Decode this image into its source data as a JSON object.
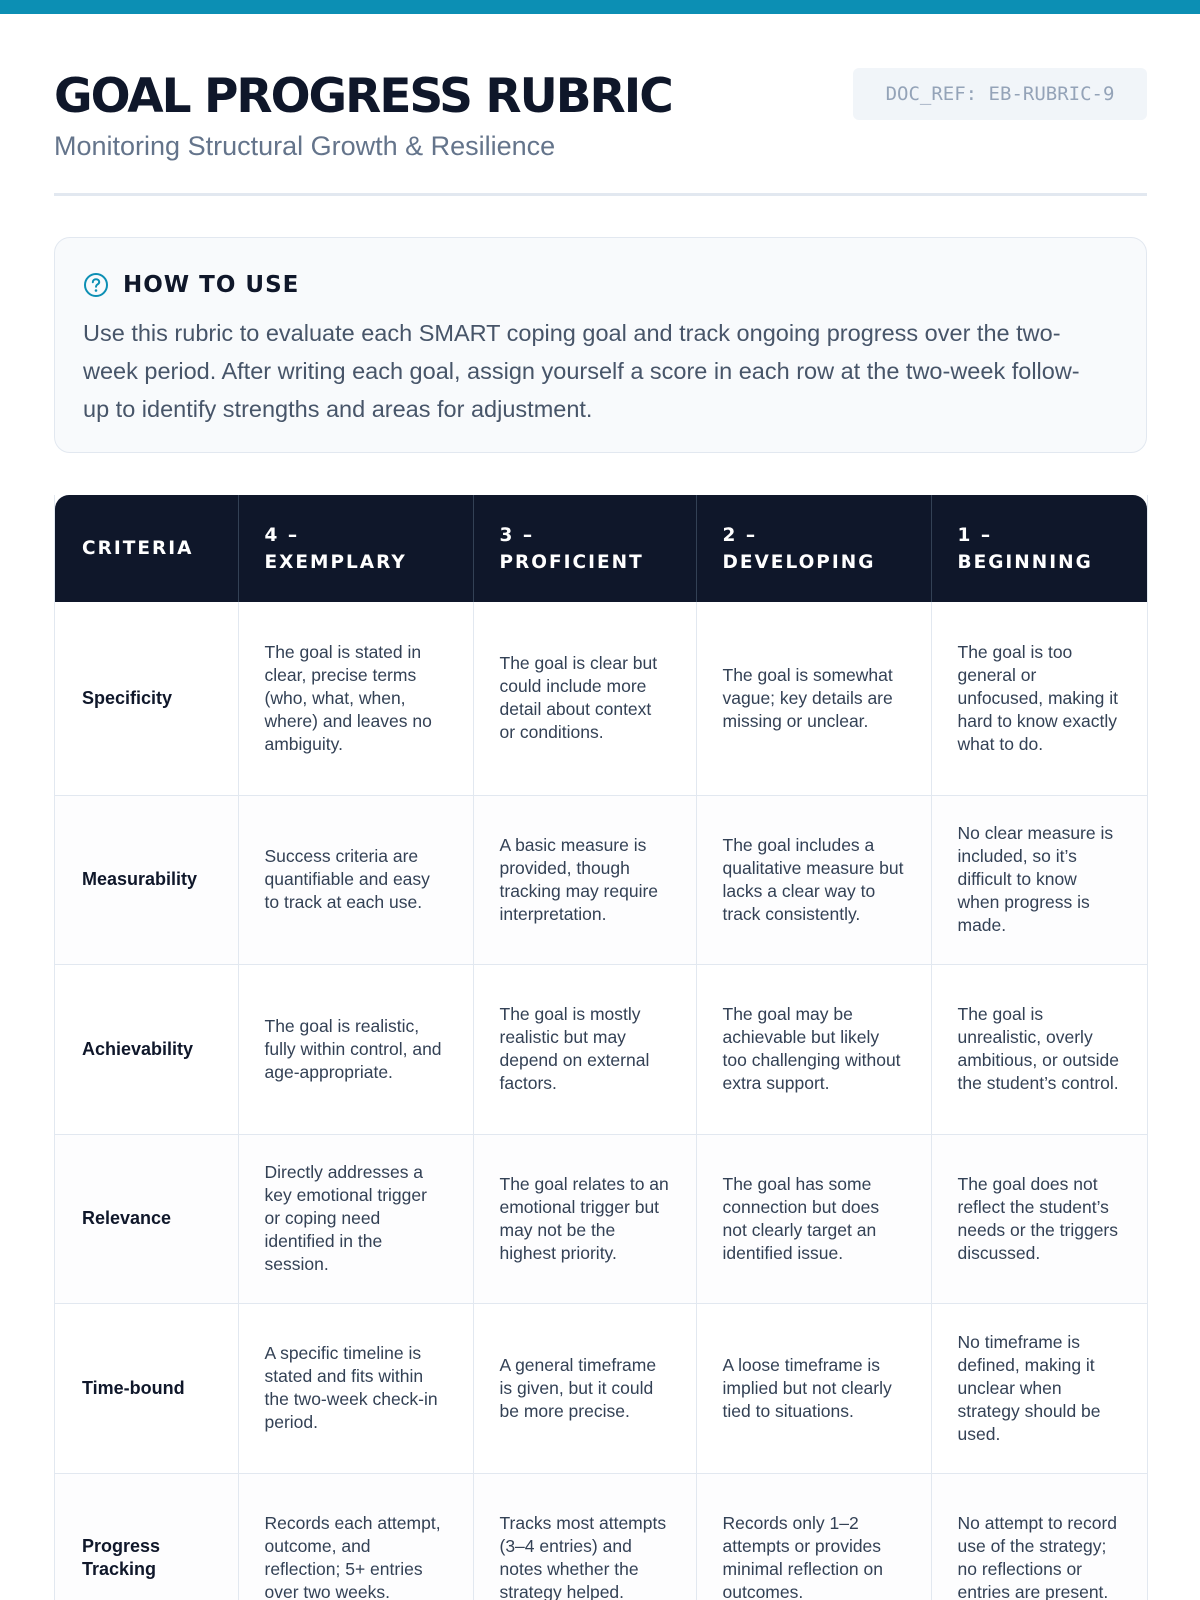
{
  "header": {
    "title": "GOAL PROGRESS RUBRIC",
    "subtitle": "Monitoring Structural Growth & Resilience",
    "doc_ref": "DOC_REF: EB-RUBRIC-9"
  },
  "how_to_use": {
    "icon": "question-circle-icon",
    "title": "HOW TO USE",
    "text": "Use this rubric to evaluate each SMART coping goal and track ongoing progress over the two-week period. After writing each goal, assign yourself a score in each row at the two-week follow-up to identify strengths and areas for adjustment."
  },
  "rubric": {
    "columns": [
      "CRITERIA",
      "4 – EXEMPLARY",
      "3 – PROFICIENT",
      "2 – DEVELOPING",
      "1 – BEGINNING"
    ],
    "rows": [
      {
        "criteria": "Specificity",
        "cells": [
          "The goal is stated in clear, precise terms (who, what, when, where) and leaves no ambiguity.",
          "The goal is clear but could include more detail about context or conditions.",
          "The goal is somewhat vague; key details are missing or unclear.",
          "The goal is too general or unfocused, making it hard to know exactly what to do."
        ]
      },
      {
        "criteria": "Measurability",
        "cells": [
          "Success criteria are quantifiable and easy to track at each use.",
          "A basic measure is provided, though tracking may require interpretation.",
          "The goal includes a qualitative measure but lacks a clear way to track consistently.",
          "No clear measure is included, so it’s difficult to know when progress is made."
        ]
      },
      {
        "criteria": "Achievability",
        "cells": [
          "The goal is realistic, fully within control, and age-appropriate.",
          "The goal is mostly realistic but may depend on external factors.",
          "The goal may be achievable but likely too challenging without extra support.",
          "The goal is unrealistic, overly ambitious, or outside the student’s control."
        ]
      },
      {
        "criteria": "Relevance",
        "cells": [
          "Directly addresses a key emotional trigger or coping need identified in the session.",
          "The goal relates to an emotional trigger but may not be the highest priority.",
          "The goal has some connection but does not clearly target an identified issue.",
          "The goal does not reflect the student’s needs or the triggers discussed."
        ]
      },
      {
        "criteria": "Time-bound",
        "cells": [
          "A specific timeline is stated and fits within the two-week check-in period.",
          "A general timeframe is given, but it could be more precise.",
          "A loose timeframe is implied but not clearly tied to situations.",
          "No timeframe is defined, making it unclear when strategy should be used."
        ]
      },
      {
        "criteria": "Progress Tracking",
        "cells": [
          "Records each attempt, outcome, and reflection; 5+ entries over two weeks.",
          "Tracks most attempts (3–4 entries) and notes whether the strategy helped.",
          "Records only 1–2 attempts or provides minimal reflection on outcomes.",
          "No attempt to record use of the strategy; no reflections or entries are present."
        ]
      }
    ]
  },
  "colors": {
    "accent": "#0c8fb4",
    "header_bg": "#0f172a",
    "muted_text": "#64748b"
  }
}
